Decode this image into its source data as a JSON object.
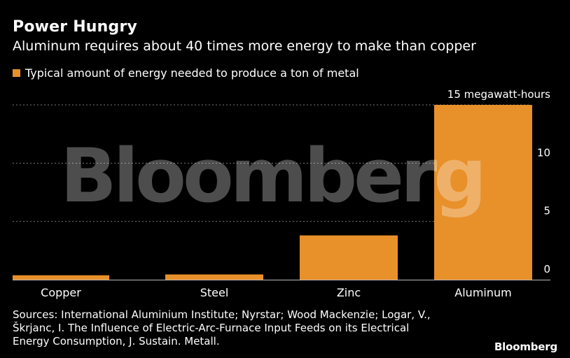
{
  "header": {
    "title": "Power Hungry",
    "subtitle": "Aluminum requires about 40 times more energy to make than copper"
  },
  "legend": {
    "label": "Typical amount of energy needed to produce a ton of metal"
  },
  "watermark": "Bloomberg",
  "source": {
    "lines": [
      "Sources: International Aluminium Institute; Nyrstar; Wood Mackenzie; Logar, V.,",
      "Škrjanc, I. The Influence of Electric-Arc-Furnace Input Feeds on its Electrical",
      "Energy Consumption, J. Sustain. Metall."
    ]
  },
  "brand": "Bloomberg",
  "colors": {
    "bar": "#e8902a",
    "background": "#000000",
    "gridline": "#777777",
    "text": "#ffffff"
  },
  "chart_data": {
    "type": "bar",
    "title": "Power Hungry",
    "subtitle": "Aluminum requires about 40 times more energy to make than copper",
    "categories": [
      "Copper",
      "Steel",
      "Zinc",
      "Aluminum"
    ],
    "series": [
      {
        "name": "Typical amount of energy needed to produce a ton of metal",
        "values": [
          0.38,
          0.45,
          3.8,
          15
        ]
      }
    ],
    "yticks": [
      "0",
      "5",
      "10",
      "15 megawatt-hours"
    ],
    "ytick_values": [
      0,
      5,
      10,
      15
    ],
    "ylim": [
      0,
      15
    ],
    "xlabel": "",
    "ylabel": "megawatt-hours",
    "grid": true,
    "legend_position": "top-left",
    "y_axis_position": "right"
  }
}
